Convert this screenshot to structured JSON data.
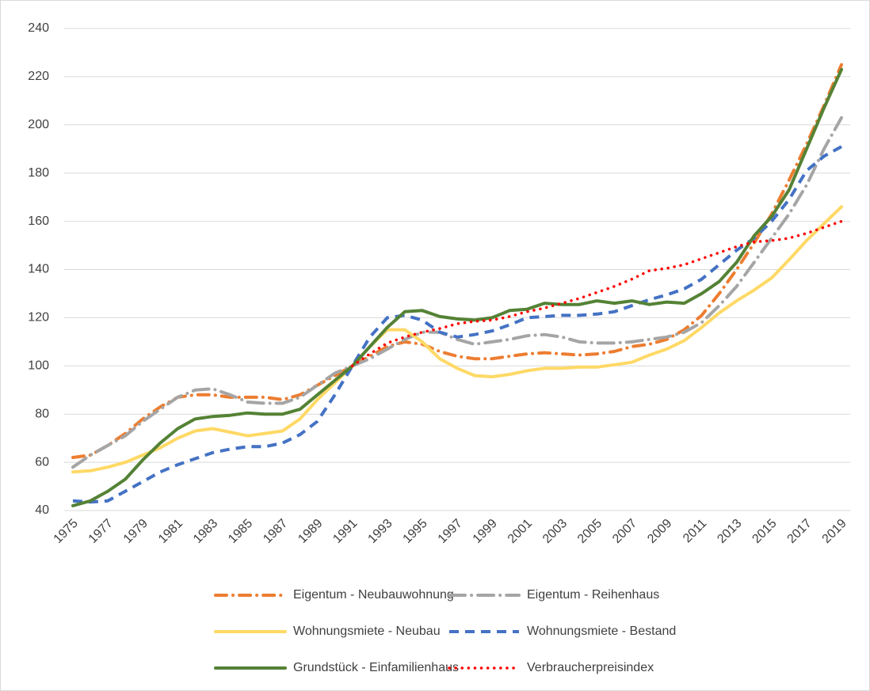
{
  "chart_data": {
    "type": "line",
    "categories": [
      "1975",
      null,
      "1977",
      null,
      "1979",
      null,
      "1981",
      null,
      "1983",
      null,
      "1985",
      null,
      "1987",
      null,
      "1989",
      null,
      "1991",
      null,
      "1993",
      null,
      "1995",
      null,
      "1997",
      null,
      "1999",
      null,
      "2001",
      null,
      "2003",
      null,
      "2005",
      null,
      "2007",
      null,
      "2009",
      null,
      "2011",
      null,
      "2013",
      null,
      "2015",
      null,
      "2017",
      null,
      "2019"
    ],
    "ylim": [
      40,
      240
    ],
    "yticks": [
      40,
      60,
      80,
      100,
      120,
      140,
      160,
      180,
      200,
      220,
      240
    ],
    "grid": true,
    "series": [
      {
        "name": "Eigentum - Neubauwohnung",
        "color": "#ed7d31",
        "dash": "dash-dot",
        "values": [
          62,
          63,
          67,
          72,
          78,
          83,
          87,
          88,
          88,
          87,
          87,
          87,
          86,
          88,
          92,
          96,
          100,
          104,
          108,
          110,
          109,
          106,
          104,
          103,
          103,
          104,
          105,
          105.5,
          105,
          104.5,
          105,
          106,
          108,
          109,
          111,
          115,
          121,
          130,
          140,
          151,
          163,
          177,
          192,
          208,
          225
        ]
      },
      {
        "name": "Eigentum - Reihenhaus",
        "color": "#a5a5a5",
        "dash": "long-dash-dot",
        "values": [
          58,
          63,
          67,
          71,
          77,
          82,
          87,
          90,
          90.5,
          88,
          85,
          84.5,
          84.5,
          87,
          92,
          97,
          100,
          103,
          107,
          111,
          114,
          114,
          111,
          109,
          110,
          111,
          112.5,
          113,
          112,
          110,
          109.5,
          109.5,
          110,
          111,
          112,
          114,
          118,
          125,
          133,
          143,
          153,
          163,
          175,
          190,
          203
        ]
      },
      {
        "name": "Wohnungsmiete - Neubau",
        "color": "#ffd966",
        "dash": "solid",
        "values": [
          56,
          56.5,
          58,
          60,
          63,
          66,
          70,
          73,
          74,
          72.5,
          71,
          72,
          73,
          78,
          86,
          93,
          100,
          108,
          115,
          115,
          110,
          103,
          99,
          96,
          95.5,
          96.5,
          98,
          99,
          99,
          99.5,
          99.5,
          100.5,
          101.5,
          104.5,
          107,
          110.5,
          116,
          122,
          127,
          131.5,
          136.5,
          144,
          152,
          159,
          166
        ]
      },
      {
        "name": "Wohnungsmiete - Bestand",
        "color": "#4472c4",
        "dash": "dash",
        "values": [
          44,
          43.5,
          44,
          48,
          52,
          56,
          59,
          61.5,
          64,
          65.5,
          66.5,
          66.5,
          68,
          71.5,
          77,
          88,
          100,
          112,
          120,
          121,
          119,
          114,
          112,
          113,
          114.5,
          117,
          120,
          120.5,
          121,
          121,
          121.5,
          122.5,
          125,
          127.5,
          129.5,
          132,
          136,
          142,
          148,
          153,
          160,
          169,
          181,
          187,
          191
        ]
      },
      {
        "name": "Grundstück - Einfamilienhaus",
        "color": "#548235",
        "dash": "solid",
        "values": [
          42,
          44,
          48,
          53,
          61,
          68,
          74,
          78,
          79,
          79.5,
          80.5,
          80,
          80,
          82,
          88,
          94,
          100,
          108,
          116,
          122.5,
          123,
          120.5,
          119.5,
          119,
          120,
          123,
          123.5,
          126,
          125.5,
          125.5,
          127,
          126,
          127,
          125.5,
          126.5,
          126,
          130,
          135,
          143,
          154,
          162,
          173,
          190,
          207,
          223
        ]
      },
      {
        "name": "Verbraucherpreisindex",
        "color": "#ff0000",
        "dash": "dot",
        "values": [
          null,
          null,
          null,
          null,
          null,
          null,
          null,
          null,
          null,
          null,
          null,
          null,
          null,
          null,
          null,
          null,
          100,
          105,
          109.5,
          112,
          114,
          115.5,
          117.5,
          118.5,
          119,
          120.5,
          122.5,
          124,
          126,
          128,
          130.5,
          133,
          136,
          139.5,
          140.5,
          142,
          144.5,
          147,
          149.5,
          151.5,
          152,
          153,
          155,
          157.5,
          160
        ]
      }
    ]
  }
}
